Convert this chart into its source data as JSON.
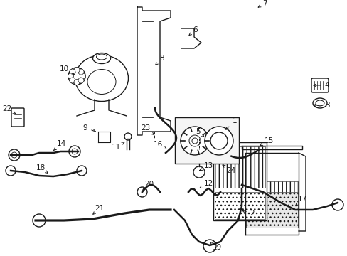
{
  "background_color": "#ffffff",
  "line_color": "#1a1a1a",
  "fig_width": 4.89,
  "fig_height": 3.6,
  "dpi": 100,
  "font_size": 7.5,
  "lw": 1.0
}
